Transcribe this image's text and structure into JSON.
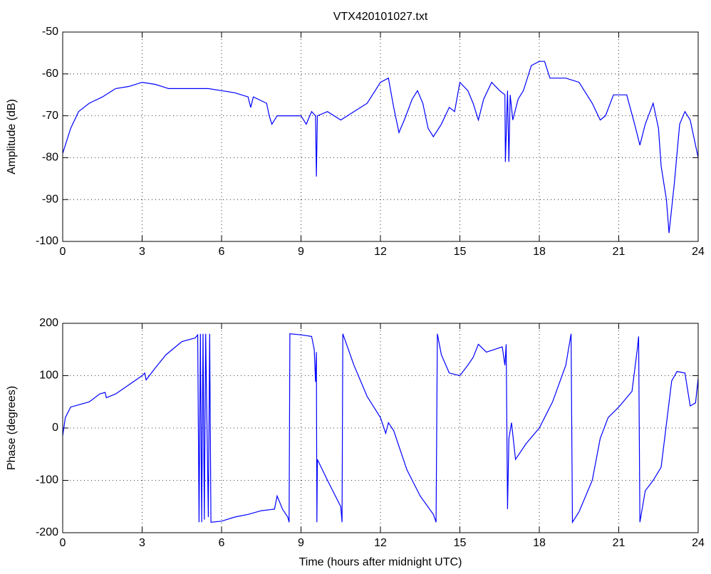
{
  "chart_data": [
    {
      "type": "line",
      "title": "VTX420101027.txt",
      "y_label": "Amplitude (dB)",
      "color": "#0000ff",
      "grid": true,
      "xlim": [
        0,
        24
      ],
      "xticks": [
        0,
        3,
        6,
        9,
        12,
        15,
        18,
        21,
        24
      ],
      "ylim": [
        -100,
        -50
      ],
      "yticks": [
        -100,
        -90,
        -80,
        -70,
        -60,
        -50
      ],
      "x": [
        0,
        0.1,
        0.3,
        0.6,
        1,
        1.5,
        2,
        2.5,
        3,
        3.5,
        4,
        4.5,
        5,
        5.5,
        6,
        6.5,
        7,
        7.1,
        7.2,
        7.7,
        7.8,
        7.9,
        8.1,
        8.5,
        9,
        9.2,
        9.4,
        9.55,
        9.58,
        9.62,
        10,
        10.5,
        11,
        11.5,
        12,
        12.3,
        12.5,
        12.7,
        12.9,
        13.2,
        13.4,
        13.6,
        13.8,
        14,
        14.3,
        14.6,
        14.8,
        15,
        15.3,
        15.5,
        15.7,
        15.9,
        16.2,
        16.5,
        16.7,
        16.72,
        16.8,
        16.85,
        16.9,
        17,
        17.2,
        17.4,
        17.7,
        18,
        18.2,
        18.4,
        19,
        19.5,
        20,
        20.3,
        20.5,
        20.8,
        21.3,
        21.6,
        21.8,
        22,
        22.3,
        22.5,
        22.6,
        22.8,
        22.9,
        23.1,
        23.3,
        23.5,
        23.7,
        24
      ],
      "values": [
        -79,
        -77,
        -73,
        -69,
        -67,
        -65.5,
        -63.5,
        -63,
        -62,
        -62.5,
        -63.5,
        -63.5,
        -63.5,
        -63.5,
        -64,
        -64.5,
        -65.5,
        -68,
        -65.5,
        -67,
        -70,
        -72,
        -70,
        -70,
        -70,
        -72,
        -69,
        -70,
        -84.5,
        -70,
        -69,
        -71,
        -69,
        -67,
        -62,
        -61,
        -68,
        -74,
        -71,
        -66,
        -64,
        -67,
        -73,
        -75,
        -72,
        -68,
        -69,
        -62,
        -64,
        -67,
        -71,
        -66,
        -62,
        -64,
        -65,
        -81,
        -64,
        -81,
        -65,
        -71,
        -66,
        -64,
        -58,
        -57,
        -57,
        -61,
        -61,
        -62,
        -67,
        -71,
        -70,
        -65,
        -65,
        -72,
        -77,
        -72,
        -67,
        -73,
        -82,
        -90,
        -98,
        -86,
        -72,
        -69,
        -71,
        -80
      ]
    },
    {
      "type": "line",
      "x_label": "Time (hours after midnight UTC)",
      "y_label": "Phase (degrees)",
      "color": "#0000ff",
      "grid": true,
      "xlim": [
        0,
        24
      ],
      "xticks": [
        0,
        3,
        6,
        9,
        12,
        15,
        18,
        21,
        24
      ],
      "ylim": [
        -200,
        200
      ],
      "yticks": [
        -200,
        -100,
        0,
        100,
        200
      ],
      "x": [
        0,
        0.1,
        0.3,
        1,
        1.4,
        1.6,
        1.65,
        2,
        3,
        3.1,
        3.15,
        3.5,
        3.9,
        4.5,
        5,
        5.1,
        5.15,
        5.2,
        5.25,
        5.3,
        5.35,
        5.4,
        5.5,
        5.55,
        5.6,
        6,
        6.5,
        7,
        7.5,
        8,
        8.1,
        8.3,
        8.5,
        8.55,
        8.58,
        9,
        9.4,
        9.5,
        9.55,
        9.58,
        9.6,
        9.62,
        10,
        10.3,
        10.5,
        10.55,
        10.58,
        11,
        11.5,
        12,
        12.2,
        12.3,
        12.5,
        13,
        13.5,
        14,
        14.1,
        14.15,
        14.3,
        14.6,
        15,
        15.3,
        15.5,
        15.7,
        16,
        16.3,
        16.6,
        16.7,
        16.75,
        16.8,
        16.85,
        16.95,
        17.1,
        17.5,
        18,
        18.5,
        19,
        19.2,
        19.25,
        19.5,
        20,
        20.3,
        20.6,
        21,
        21.5,
        21.7,
        21.75,
        21.8,
        22,
        22.3,
        22.6,
        23,
        23.2,
        23.5,
        23.7,
        23.9,
        24
      ],
      "values": [
        -15,
        20,
        40,
        50,
        65,
        68,
        58,
        65,
        100,
        105,
        92,
        115,
        140,
        165,
        172,
        178,
        -180,
        180,
        -180,
        180,
        -175,
        180,
        -170,
        180,
        -180,
        -178,
        -170,
        -165,
        -158,
        -155,
        -130,
        -155,
        -170,
        -180,
        180,
        178,
        175,
        150,
        88,
        145,
        -180,
        -60,
        -100,
        -130,
        -150,
        -180,
        180,
        120,
        60,
        20,
        -10,
        10,
        -5,
        -80,
        -130,
        -165,
        -180,
        180,
        140,
        105,
        100,
        120,
        135,
        160,
        145,
        150,
        155,
        120,
        160,
        -155,
        -20,
        10,
        -60,
        -30,
        0,
        50,
        120,
        180,
        -180,
        -160,
        -100,
        -20,
        20,
        40,
        70,
        150,
        175,
        -180,
        -120,
        -100,
        -75,
        90,
        108,
        105,
        42,
        48,
        95
      ]
    }
  ]
}
